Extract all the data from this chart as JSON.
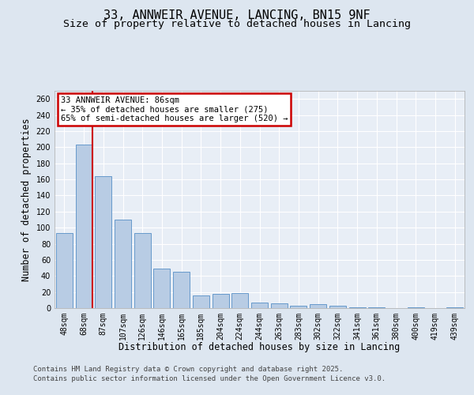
{
  "title1": "33, ANNWEIR AVENUE, LANCING, BN15 9NF",
  "title2": "Size of property relative to detached houses in Lancing",
  "xlabel": "Distribution of detached houses by size in Lancing",
  "ylabel": "Number of detached properties",
  "categories": [
    "48sqm",
    "68sqm",
    "87sqm",
    "107sqm",
    "126sqm",
    "146sqm",
    "165sqm",
    "185sqm",
    "204sqm",
    "224sqm",
    "244sqm",
    "263sqm",
    "283sqm",
    "302sqm",
    "322sqm",
    "341sqm",
    "361sqm",
    "380sqm",
    "400sqm",
    "419sqm",
    "439sqm"
  ],
  "values": [
    93,
    203,
    164,
    110,
    93,
    49,
    45,
    16,
    18,
    19,
    7,
    6,
    3,
    5,
    3,
    1,
    1,
    0,
    1,
    0,
    1
  ],
  "bar_color": "#b8cce4",
  "bar_edge_color": "#6699cc",
  "red_line_index": 1,
  "annotation_text": "33 ANNWEIR AVENUE: 86sqm\n← 35% of detached houses are smaller (275)\n65% of semi-detached houses are larger (520) →",
  "annotation_box_color": "#ffffff",
  "annotation_box_edge_color": "#cc0000",
  "red_line_color": "#cc0000",
  "background_color": "#dde6f0",
  "plot_bg_color": "#e8eef6",
  "grid_color": "#ffffff",
  "ylim": [
    0,
    270
  ],
  "yticks": [
    0,
    20,
    40,
    60,
    80,
    100,
    120,
    140,
    160,
    180,
    200,
    220,
    240,
    260
  ],
  "footer1": "Contains HM Land Registry data © Crown copyright and database right 2025.",
  "footer2": "Contains public sector information licensed under the Open Government Licence v3.0.",
  "title_fontsize": 11,
  "subtitle_fontsize": 9.5,
  "tick_fontsize": 7,
  "ylabel_fontsize": 8.5,
  "xlabel_fontsize": 8.5,
  "footer_fontsize": 6.5
}
